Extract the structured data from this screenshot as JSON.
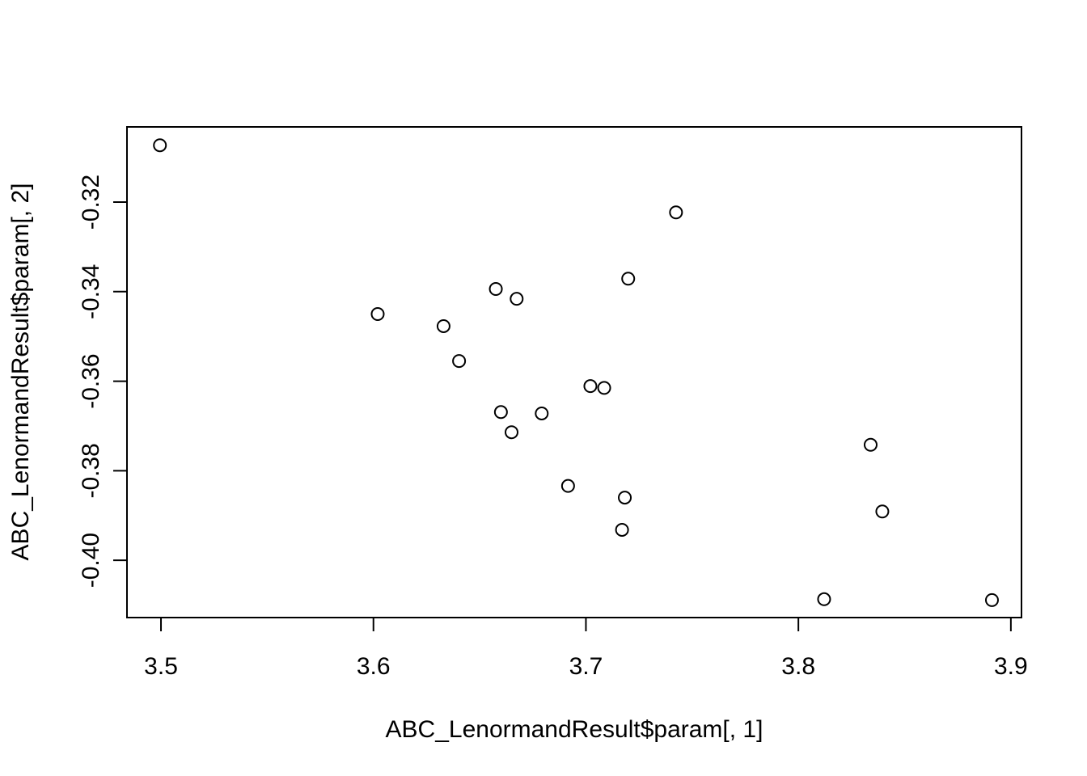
{
  "chart_data": {
    "type": "scatter",
    "title": "",
    "xlabel": "ABC_LenormandResult$param[, 1]",
    "ylabel": "ABC_LenormandResult$param[, 2]",
    "xlim": [
      3.484,
      3.905
    ],
    "ylim": [
      -0.4128,
      -0.3032
    ],
    "x_ticks": [
      3.5,
      3.6,
      3.7,
      3.8,
      3.9
    ],
    "x_tick_labels": [
      "3.5",
      "3.6",
      "3.7",
      "3.8",
      "3.9"
    ],
    "y_ticks": [
      -0.32,
      -0.34,
      -0.36,
      -0.38,
      -0.4
    ],
    "y_tick_labels": [
      "-0.32",
      "-0.34",
      "-0.36",
      "-0.38",
      "-0.40"
    ],
    "grid": false,
    "legend": "none",
    "marker": "open-circle",
    "marker_color": "#000000",
    "points": [
      {
        "x": 3.4995,
        "y": -0.3073
      },
      {
        "x": 3.602,
        "y": -0.345
      },
      {
        "x": 3.633,
        "y": -0.3477
      },
      {
        "x": 3.6403,
        "y": -0.3555
      },
      {
        "x": 3.6576,
        "y": -0.3394
      },
      {
        "x": 3.66,
        "y": -0.3669
      },
      {
        "x": 3.665,
        "y": -0.3714
      },
      {
        "x": 3.6674,
        "y": -0.3416
      },
      {
        "x": 3.6792,
        "y": -0.3672
      },
      {
        "x": 3.6916,
        "y": -0.3834
      },
      {
        "x": 3.7021,
        "y": -0.3611
      },
      {
        "x": 3.7086,
        "y": -0.3615
      },
      {
        "x": 3.717,
        "y": -0.3932
      },
      {
        "x": 3.7183,
        "y": -0.386
      },
      {
        "x": 3.7199,
        "y": -0.3371
      },
      {
        "x": 3.7424,
        "y": -0.3223
      },
      {
        "x": 3.8121,
        "y": -0.4087
      },
      {
        "x": 3.834,
        "y": -0.3742
      },
      {
        "x": 3.8395,
        "y": -0.3891
      },
      {
        "x": 3.8911,
        "y": -0.4089
      }
    ]
  }
}
